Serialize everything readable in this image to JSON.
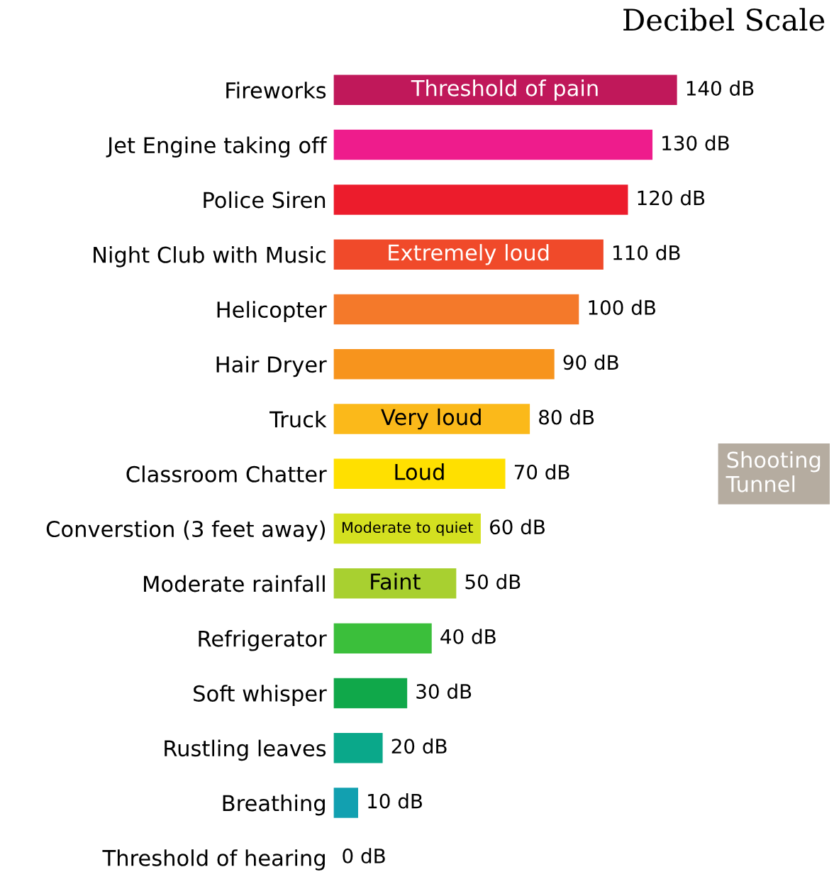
{
  "chart_data": {
    "type": "bar",
    "orientation": "horizontal",
    "title": "Decibel Scale",
    "tick_labels": "y",
    "categories": [
      "Fireworks",
      "Jet Engine taking off",
      "Police Siren",
      "Night Club with Music",
      "Helicopter",
      "Hair Dryer",
      "Truck",
      "Classroom Chatter",
      "Converstion (3 feet away)",
      "Moderate rainfall",
      "Refrigerator",
      "Soft whisper",
      "Rustling leaves",
      "Breathing",
      "Threshold of hearing"
    ],
    "values": [
      140,
      130,
      120,
      110,
      100,
      90,
      80,
      70,
      60,
      50,
      40,
      30,
      20,
      10,
      0
    ],
    "colors": [
      "#c0185a",
      "#ee1c8c",
      "#ec1c2c",
      "#f04a2a",
      "#f4792a",
      "#f7941d",
      "#fbb91a",
      "#ffe000",
      "#d4e020",
      "#a8d030",
      "#3bbf3b",
      "#10a84a",
      "#0aa88a",
      "#12a0b0",
      "#0a7fb0"
    ],
    "value_labels": [
      "140 dB",
      "130 dB",
      "120 dB",
      "110 dB",
      "100 dB",
      "90 dB",
      "80 dB",
      "70 dB",
      "60 dB",
      "50 dB",
      "40 dB",
      "30 dB",
      "20 dB",
      "10 dB",
      "0 dB"
    ],
    "annotations": [
      "Threshold of pain",
      "Extremely loud",
      "Very loud",
      "Loud",
      "Moderate to quiet",
      "Faint",
      "Shooting\nTunnel"
    ]
  }
}
